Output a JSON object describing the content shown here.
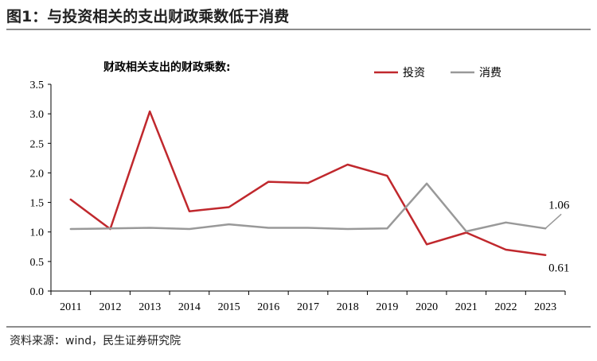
{
  "header": {
    "title": "图1：与投资相关的支出财政乘数低于消费"
  },
  "footer": {
    "source": "资料来源：wind，民生证券研究院"
  },
  "chart_data": {
    "type": "line",
    "title": "财政相关支出的财政乘数:",
    "xlabel": "",
    "ylabel": "",
    "categories": [
      "2011",
      "2012",
      "2013",
      "2014",
      "2015",
      "2016",
      "2017",
      "2018",
      "2019",
      "2020",
      "2021",
      "2022",
      "2023"
    ],
    "ylim": [
      0,
      3.5
    ],
    "yticks": [
      "0.0",
      "0.5",
      "1.0",
      "1.5",
      "2.0",
      "2.5",
      "3.0",
      "3.5"
    ],
    "grid": false,
    "legend_position": "top-right",
    "series": [
      {
        "name": "投资",
        "color": "#c0282d",
        "values": [
          1.55,
          1.05,
          3.04,
          1.35,
          1.42,
          1.85,
          1.83,
          2.14,
          1.95,
          0.79,
          0.99,
          0.7,
          0.61
        ]
      },
      {
        "name": "消费",
        "color": "#999999",
        "values": [
          1.05,
          1.06,
          1.07,
          1.05,
          1.13,
          1.07,
          1.07,
          1.05,
          1.06,
          1.82,
          1.01,
          1.16,
          1.06
        ]
      }
    ],
    "annotations": [
      {
        "text": "1.06",
        "series": 1,
        "index": 12
      },
      {
        "text": "0.61",
        "series": 0,
        "index": 12
      }
    ]
  }
}
